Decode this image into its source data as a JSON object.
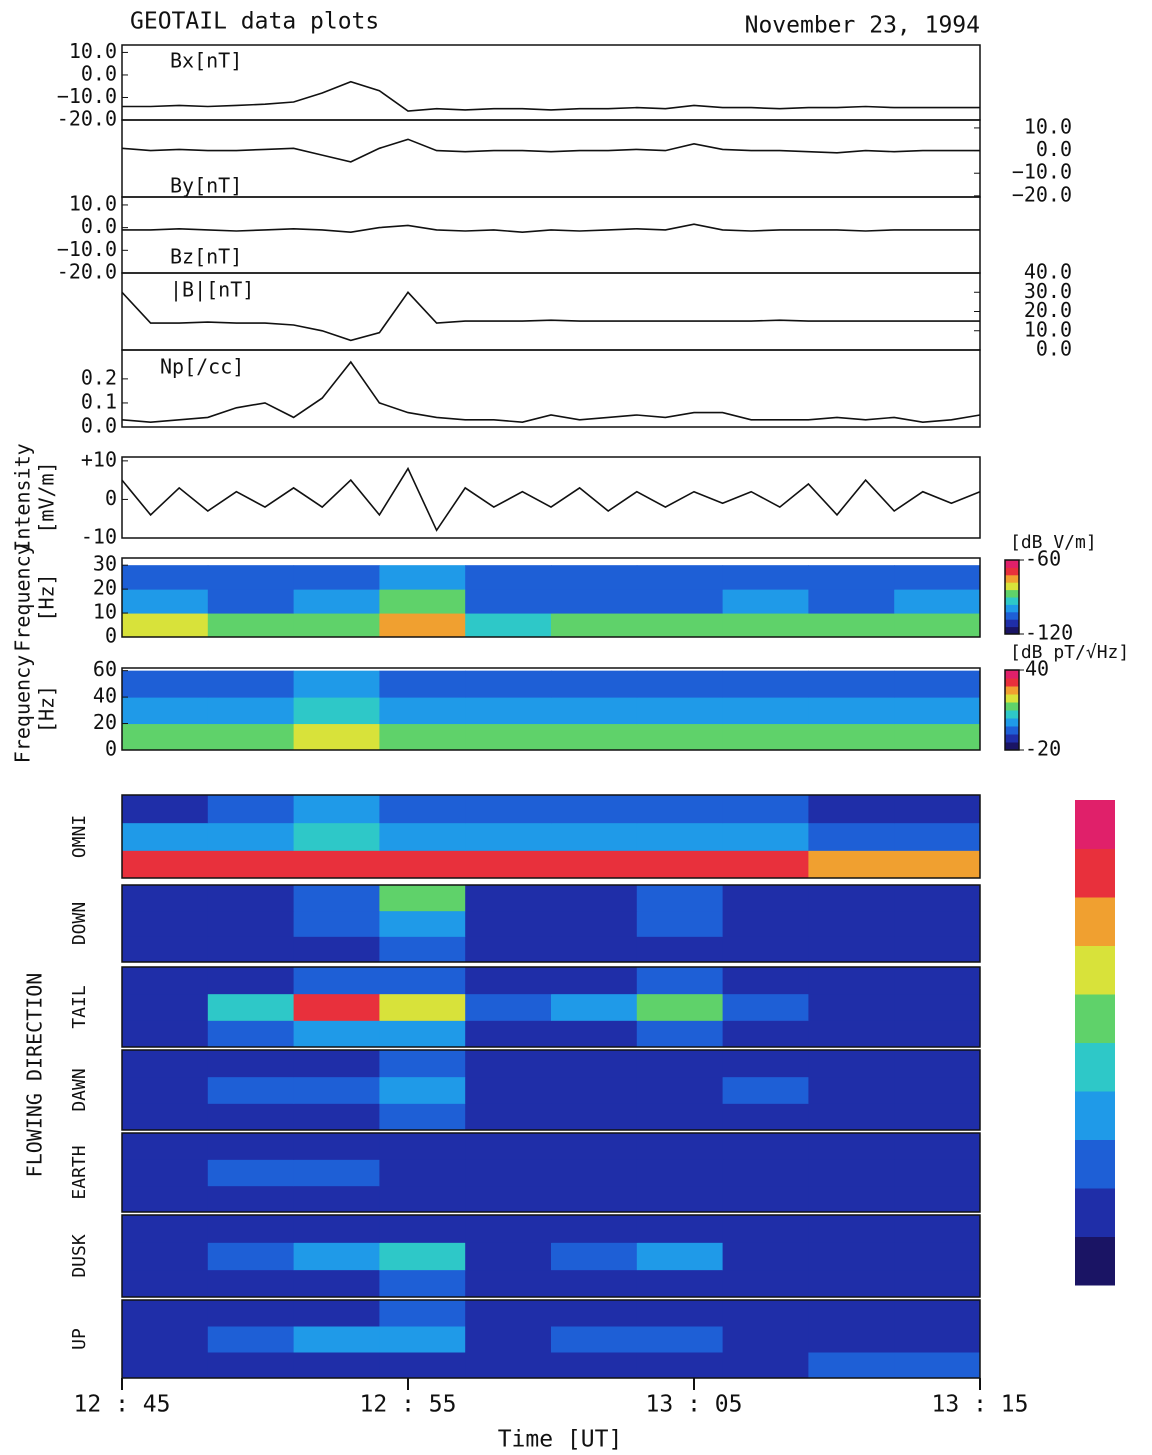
{
  "title": "GEOTAIL data plots",
  "date": "November 23, 1994",
  "xlabel": "Time   [UT]",
  "flowing_label": "FLOWING DIRECTION",
  "xlim": [
    "12:45",
    "13:15"
  ],
  "xticks": [
    {
      "value": "12:45",
      "label": "12 : 45"
    },
    {
      "value": "12:55",
      "label": "12 : 55"
    },
    {
      "value": "13:05",
      "label": "13 : 05"
    },
    {
      "value": "13:15",
      "label": "13 : 15"
    }
  ],
  "colormap": [
    "#1a1464",
    "#1f2ea8",
    "#1e5fd6",
    "#1f9ae8",
    "#2ec8c8",
    "#5fd26a",
    "#d8e23a",
    "#f0a030",
    "#e8303c",
    "#e0206a"
  ],
  "chart_data": [
    {
      "type": "line",
      "title": "Bx[nT]",
      "color": "#111111",
      "axis_side": "left",
      "x": [
        "12:45",
        "12:46",
        "12:47",
        "12:48",
        "12:49",
        "12:50",
        "12:51",
        "12:52",
        "12:53",
        "12:54",
        "12:55",
        "12:56",
        "12:57",
        "12:58",
        "12:59",
        "13:00",
        "13:01",
        "13:02",
        "13:03",
        "13:04",
        "13:05",
        "13:06",
        "13:07",
        "13:08",
        "13:09",
        "13:10",
        "13:11",
        "13:12",
        "13:13",
        "13:14",
        "13:15"
      ],
      "values": [
        -14,
        -14,
        -13.5,
        -14,
        -13.5,
        -13,
        -12,
        -8,
        -3,
        -7,
        -16,
        -15,
        -15.5,
        -15,
        -15,
        -15.5,
        -15,
        -15,
        -14.5,
        -15,
        -13.5,
        -14.5,
        -14.5,
        -15,
        -14.5,
        -14.5,
        -14,
        -14.5,
        -14.5,
        -14.5,
        -14.5
      ],
      "ylim": [
        -20,
        13.3
      ],
      "yticks": [
        {
          "value": 10,
          "label": "10.0"
        },
        {
          "value": 0,
          "label": "0.0"
        },
        {
          "value": -10,
          "label": "−10.0"
        },
        {
          "value": -20,
          "label": "-20.0"
        }
      ]
    },
    {
      "type": "line",
      "title": "By[nT]",
      "color": "#111111",
      "axis_side": "right",
      "x": [
        "12:45",
        "12:46",
        "12:47",
        "12:48",
        "12:49",
        "12:50",
        "12:51",
        "12:52",
        "12:53",
        "12:54",
        "12:55",
        "12:56",
        "12:57",
        "12:58",
        "12:59",
        "13:00",
        "13:01",
        "13:02",
        "13:03",
        "13:04",
        "13:05",
        "13:06",
        "13:07",
        "13:08",
        "13:09",
        "13:10",
        "13:11",
        "13:12",
        "13:13",
        "13:14",
        "13:15"
      ],
      "values": [
        1,
        0,
        0.5,
        0,
        0,
        0.5,
        1,
        -2,
        -5,
        1,
        5,
        0,
        -0.5,
        0,
        0,
        -0.5,
        0,
        0,
        0.5,
        0,
        3,
        0.5,
        0,
        0,
        -0.5,
        -1,
        0,
        -0.5,
        0,
        0,
        0
      ],
      "ylim": [
        -20.5,
        13.5
      ],
      "yticks": [
        {
          "value": 10,
          "label": "10.0"
        },
        {
          "value": 0,
          "label": "0.0"
        },
        {
          "value": -10,
          "label": "−10.0"
        },
        {
          "value": -20,
          "label": "−20.0"
        }
      ]
    },
    {
      "type": "line",
      "title": "Bz[nT]",
      "color": "#111111",
      "axis_side": "left",
      "x": [
        "12:45",
        "12:46",
        "12:47",
        "12:48",
        "12:49",
        "12:50",
        "12:51",
        "12:52",
        "12:53",
        "12:54",
        "12:55",
        "12:56",
        "12:57",
        "12:58",
        "12:59",
        "13:00",
        "13:01",
        "13:02",
        "13:03",
        "13:04",
        "13:05",
        "13:06",
        "13:07",
        "13:08",
        "13:09",
        "13:10",
        "13:11",
        "13:12",
        "13:13",
        "13:14",
        "13:15"
      ],
      "values": [
        -1,
        -1,
        -0.5,
        -1,
        -1.5,
        -1,
        -0.5,
        -1,
        -2,
        0,
        1,
        -1,
        -1.5,
        -1,
        -2,
        -1,
        -1.5,
        -1,
        -0.5,
        -1,
        1.5,
        -1,
        -1.5,
        -1,
        -1,
        -1,
        -1.5,
        -1,
        -1,
        -1,
        -1
      ],
      "ylim": [
        -20,
        13.5
      ],
      "yticks": [
        {
          "value": 10,
          "label": "10.0"
        },
        {
          "value": 0,
          "label": "0.0"
        },
        {
          "value": -10,
          "label": "−10.0"
        },
        {
          "value": -20,
          "label": "-20.0"
        }
      ]
    },
    {
      "type": "line",
      "title": "|B|[nT]",
      "color": "#111111",
      "axis_side": "right",
      "x": [
        "12:45",
        "12:46",
        "12:47",
        "12:48",
        "12:49",
        "12:50",
        "12:51",
        "12:52",
        "12:53",
        "12:54",
        "12:55",
        "12:56",
        "12:57",
        "12:58",
        "12:59",
        "13:00",
        "13:01",
        "13:02",
        "13:03",
        "13:04",
        "13:05",
        "13:06",
        "13:07",
        "13:08",
        "13:09",
        "13:10",
        "13:11",
        "13:12",
        "13:13",
        "13:14",
        "13:15"
      ],
      "values": [
        30,
        14,
        14,
        14.5,
        14,
        14,
        13,
        10,
        5,
        9,
        30,
        14,
        15,
        15,
        15,
        15.5,
        15,
        15,
        15,
        15,
        15,
        15,
        15,
        15.5,
        15,
        15,
        15,
        15,
        15,
        15,
        15
      ],
      "ylim": [
        0,
        40
      ],
      "yticks": [
        {
          "value": 40,
          "label": "40.0"
        },
        {
          "value": 30,
          "label": "30.0"
        },
        {
          "value": 20,
          "label": "20.0"
        },
        {
          "value": 10,
          "label": "10.0"
        },
        {
          "value": 0,
          "label": "0.0"
        }
      ]
    },
    {
      "type": "line",
      "title": "Np[/cc]",
      "color": "#111111",
      "axis_side": "left",
      "x": [
        "12:45",
        "12:46",
        "12:47",
        "12:48",
        "12:49",
        "12:50",
        "12:51",
        "12:52",
        "12:53",
        "12:54",
        "12:55",
        "12:56",
        "12:57",
        "12:58",
        "12:59",
        "13:00",
        "13:01",
        "13:02",
        "13:03",
        "13:04",
        "13:05",
        "13:06",
        "13:07",
        "13:08",
        "13:09",
        "13:10",
        "13:11",
        "13:12",
        "13:13",
        "13:14",
        "13:15"
      ],
      "values": [
        0.03,
        0.02,
        0.03,
        0.04,
        0.08,
        0.1,
        0.04,
        0.12,
        0.27,
        0.1,
        0.06,
        0.04,
        0.03,
        0.03,
        0.02,
        0.05,
        0.03,
        0.04,
        0.05,
        0.04,
        0.06,
        0.06,
        0.03,
        0.03,
        0.03,
        0.04,
        0.03,
        0.04,
        0.02,
        0.03,
        0.05
      ],
      "ylim": [
        0,
        0.32
      ],
      "yticks": [
        0.2,
        0.1,
        {
          "value": 0,
          "label": "0.0"
        }
      ]
    },
    {
      "type": "line",
      "ylabel": [
        "Intensity",
        "[mV/m]"
      ],
      "color": "#111111",
      "axis_side": "left",
      "x": [
        "12:45",
        "12:46",
        "12:47",
        "12:48",
        "12:49",
        "12:50",
        "12:51",
        "12:52",
        "12:53",
        "12:54",
        "12:55",
        "12:56",
        "12:57",
        "12:58",
        "12:59",
        "13:00",
        "13:01",
        "13:02",
        "13:03",
        "13:04",
        "13:05",
        "13:06",
        "13:07",
        "13:08",
        "13:09",
        "13:10",
        "13:11",
        "13:12",
        "13:13",
        "13:14",
        "13:15"
      ],
      "values": [
        5,
        -4,
        3,
        -3,
        2,
        -2,
        3,
        -2,
        5,
        -4,
        8,
        -8,
        3,
        -2,
        2,
        -2,
        3,
        -3,
        2,
        -2,
        2,
        -1,
        2,
        -2,
        4,
        -4,
        5,
        -3,
        2,
        -1,
        2
      ],
      "ylim": [
        -10,
        11
      ],
      "yticks": [
        {
          "value": 10,
          "label": "+10"
        },
        0,
        -10
      ]
    },
    {
      "type": "heatmap",
      "ylabel": [
        "Frequency",
        "[Hz]"
      ],
      "colorbar_label": "[dB V/m]",
      "xbins": [
        "12:45",
        "12:48",
        "12:51",
        "12:54",
        "12:57",
        "13:00",
        "13:03",
        "13:06",
        "13:09",
        "13:12",
        "13:15"
      ],
      "ybins": [
        0,
        10,
        20,
        30
      ],
      "z": [
        [
          -80,
          -90,
          -90,
          -75,
          -95,
          -90,
          -90,
          -85,
          -90,
          -85
        ],
        [
          -100,
          -105,
          -100,
          -90,
          -105,
          -105,
          -105,
          -100,
          -105,
          -100
        ],
        [
          -108,
          -105,
          -105,
          -100,
          -108,
          -108,
          -108,
          -105,
          -108,
          -108
        ]
      ],
      "zlim": [
        -120,
        -60
      ],
      "colorbar_ticks": [
        -60,
        -120
      ],
      "ylim": [
        0,
        33
      ],
      "yticks": [
        30,
        20,
        10,
        0
      ]
    },
    {
      "type": "heatmap",
      "ylabel": [
        "Frequency",
        "[Hz]"
      ],
      "colorbar_label": "[dB pT/√Hz]",
      "xbins": [
        "12:45",
        "12:48",
        "12:51",
        "12:54",
        "12:57",
        "13:00",
        "13:03",
        "13:06",
        "13:09",
        "13:12",
        "13:15"
      ],
      "ybins": [
        0,
        20,
        40,
        60
      ],
      "z": [
        [
          12,
          12,
          18,
          12,
          12,
          12,
          12,
          12,
          12,
          12
        ],
        [
          2,
          2,
          8,
          3,
          2,
          2,
          2,
          2,
          2,
          2
        ],
        [
          -5,
          -5,
          -2,
          -5,
          -6,
          -7,
          -7,
          -7,
          -7,
          -7
        ]
      ],
      "zlim": [
        -20,
        40
      ],
      "colorbar_ticks": [
        40,
        -20
      ],
      "ylim": [
        0,
        62
      ],
      "yticks": [
        60,
        40,
        20,
        0
      ]
    },
    {
      "type": "heatmap",
      "label": "OMNI",
      "zlim": [
        0,
        10
      ],
      "xbins": [
        "12:45",
        "12:48",
        "12:51",
        "12:54",
        "12:57",
        "13:00",
        "13:03",
        "13:06",
        "13:09",
        "13:12",
        "13:15"
      ],
      "z": [
        [
          9,
          9,
          9,
          9,
          9,
          9,
          9,
          9,
          8,
          8
        ],
        [
          3,
          3,
          4,
          3,
          3,
          3,
          3,
          3,
          2,
          2
        ],
        [
          1,
          2,
          3,
          2,
          2,
          2,
          2,
          2,
          1,
          1
        ]
      ]
    },
    {
      "type": "heatmap",
      "label": "DOWN",
      "zlim": [
        0,
        10
      ],
      "xbins": [
        "12:45",
        "12:48",
        "12:51",
        "12:54",
        "12:57",
        "13:00",
        "13:03",
        "13:06",
        "13:09",
        "13:12",
        "13:15"
      ],
      "z": [
        [
          1,
          1,
          1,
          2,
          1,
          1,
          1,
          1,
          1,
          1
        ],
        [
          1,
          1,
          2,
          3,
          1,
          1,
          2,
          1,
          1,
          1
        ],
        [
          1,
          1,
          2,
          6,
          1,
          1,
          2,
          1,
          1,
          1
        ]
      ]
    },
    {
      "type": "heatmap",
      "label": "TAIL",
      "zlim": [
        0,
        10
      ],
      "xbins": [
        "12:45",
        "12:48",
        "12:51",
        "12:54",
        "12:57",
        "13:00",
        "13:03",
        "13:06",
        "13:09",
        "13:12",
        "13:15"
      ],
      "z": [
        [
          1,
          2,
          3,
          3,
          1,
          1,
          2,
          1,
          1,
          1
        ],
        [
          1,
          4,
          9,
          7,
          2,
          3,
          5,
          2,
          1,
          1
        ],
        [
          1,
          1,
          2,
          2,
          1,
          1,
          2,
          1,
          1,
          1
        ]
      ]
    },
    {
      "type": "heatmap",
      "label": "DAWN",
      "zlim": [
        0,
        10
      ],
      "xbins": [
        "12:45",
        "12:48",
        "12:51",
        "12:54",
        "12:57",
        "13:00",
        "13:03",
        "13:06",
        "13:09",
        "13:12",
        "13:15"
      ],
      "z": [
        [
          1,
          1,
          1,
          2,
          1,
          1,
          1,
          1,
          1,
          1
        ],
        [
          1,
          2,
          2,
          3,
          1,
          1,
          1,
          2,
          1,
          1
        ],
        [
          1,
          1,
          1,
          2,
          1,
          1,
          1,
          1,
          1,
          1
        ]
      ]
    },
    {
      "type": "heatmap",
      "label": "EARTH",
      "zlim": [
        0,
        10
      ],
      "xbins": [
        "12:45",
        "12:48",
        "12:51",
        "12:54",
        "12:57",
        "13:00",
        "13:03",
        "13:06",
        "13:09",
        "13:12",
        "13:15"
      ],
      "z": [
        [
          1,
          1,
          1,
          1,
          1,
          1,
          1,
          1,
          1,
          1
        ],
        [
          1,
          2,
          2,
          1,
          1,
          1,
          1,
          1,
          1,
          1
        ],
        [
          1,
          1,
          1,
          1,
          1,
          1,
          1,
          1,
          1,
          1
        ]
      ]
    },
    {
      "type": "heatmap",
      "label": "DUSK",
      "zlim": [
        0,
        10
      ],
      "xbins": [
        "12:45",
        "12:48",
        "12:51",
        "12:54",
        "12:57",
        "13:00",
        "13:03",
        "13:06",
        "13:09",
        "13:12",
        "13:15"
      ],
      "z": [
        [
          1,
          1,
          1,
          2,
          1,
          1,
          1,
          1,
          1,
          1
        ],
        [
          1,
          2,
          3,
          4,
          1,
          2,
          3,
          1,
          1,
          1
        ],
        [
          1,
          1,
          1,
          1,
          1,
          1,
          1,
          1,
          1,
          1
        ]
      ]
    },
    {
      "type": "heatmap",
      "label": "UP",
      "zlim": [
        0,
        10
      ],
      "xbins": [
        "12:45",
        "12:48",
        "12:51",
        "12:54",
        "12:57",
        "13:00",
        "13:03",
        "13:06",
        "13:09",
        "13:12",
        "13:15"
      ],
      "z": [
        [
          1,
          1,
          1,
          1,
          1,
          1,
          1,
          1,
          2,
          2
        ],
        [
          1,
          2,
          3,
          3,
          1,
          2,
          2,
          1,
          1,
          1
        ],
        [
          1,
          1,
          1,
          2,
          1,
          1,
          1,
          1,
          1,
          1
        ]
      ]
    }
  ]
}
